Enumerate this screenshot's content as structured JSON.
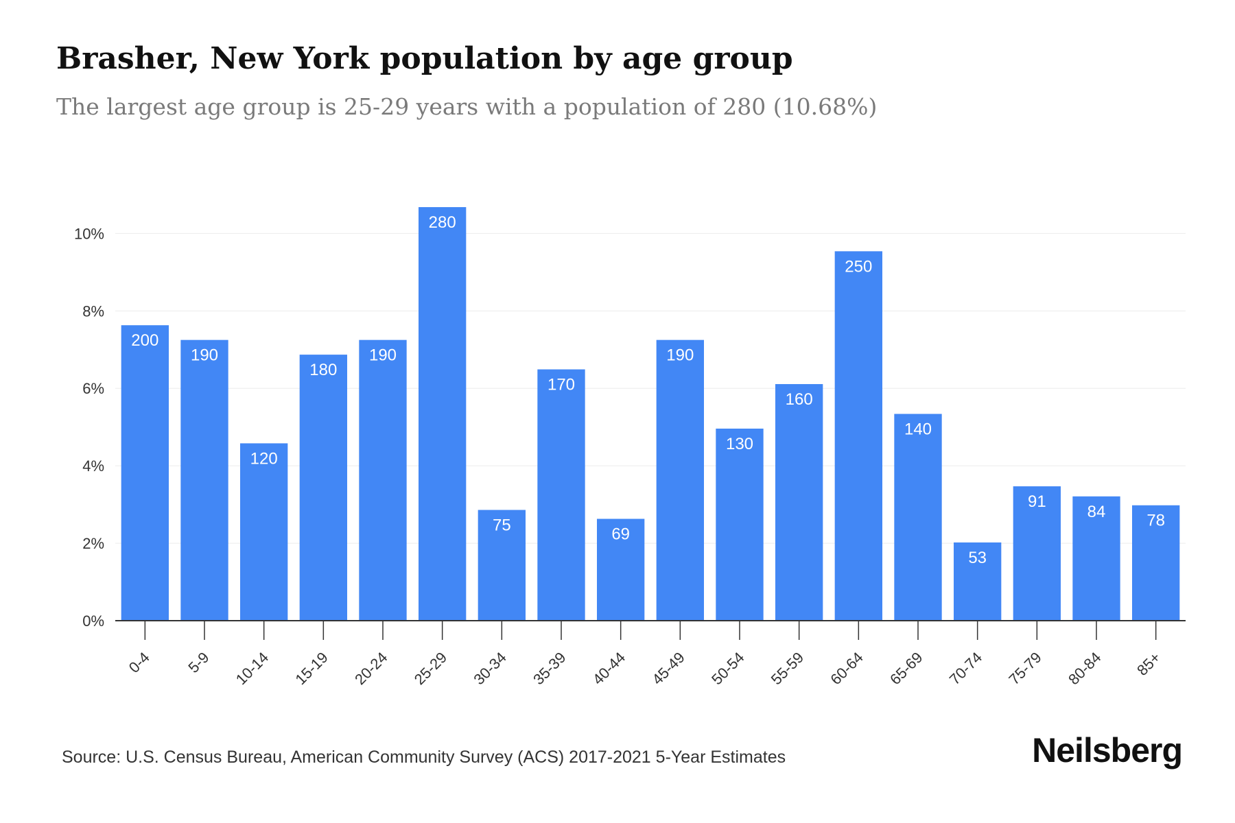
{
  "title": "Brasher, New York population by age group",
  "subtitle": "The largest age group is 25-29 years with a population of 280 (10.68%)",
  "source": "Source: U.S. Census Bureau, American Community Survey (ACS) 2017-2021 5-Year Estimates",
  "brand": "Neilsberg",
  "colors": {
    "bar": "#4287f5",
    "bar_label": "#ffffff",
    "grid": "#ebebeb",
    "axis": "#333333",
    "tick_text": "#333333"
  },
  "chart_data": {
    "type": "bar",
    "title": "Brasher, New York population by age group",
    "subtitle": "The largest age group is 25-29 years with a population of 280 (10.68%)",
    "xlabel": "",
    "ylabel": "",
    "categories": [
      "0-4",
      "5-9",
      "10-14",
      "15-19",
      "20-24",
      "25-29",
      "30-34",
      "35-39",
      "40-44",
      "45-49",
      "50-54",
      "55-59",
      "60-64",
      "65-69",
      "70-74",
      "75-79",
      "80-84",
      "85+"
    ],
    "values": [
      200,
      190,
      120,
      180,
      190,
      280,
      75,
      170,
      69,
      190,
      130,
      160,
      250,
      140,
      53,
      91,
      84,
      78
    ],
    "percent": [
      7.63,
      7.25,
      4.58,
      6.87,
      7.25,
      10.68,
      2.86,
      6.49,
      2.63,
      7.25,
      4.96,
      6.11,
      9.54,
      5.34,
      2.02,
      3.47,
      3.21,
      2.98
    ],
    "ylim": [
      0,
      10.68
    ],
    "yticks": [
      0,
      2,
      4,
      6,
      8,
      10
    ],
    "ytick_labels": [
      "0%",
      "2%",
      "4%",
      "6%",
      "8%",
      "10%"
    ],
    "grid": true,
    "legend": "none"
  }
}
